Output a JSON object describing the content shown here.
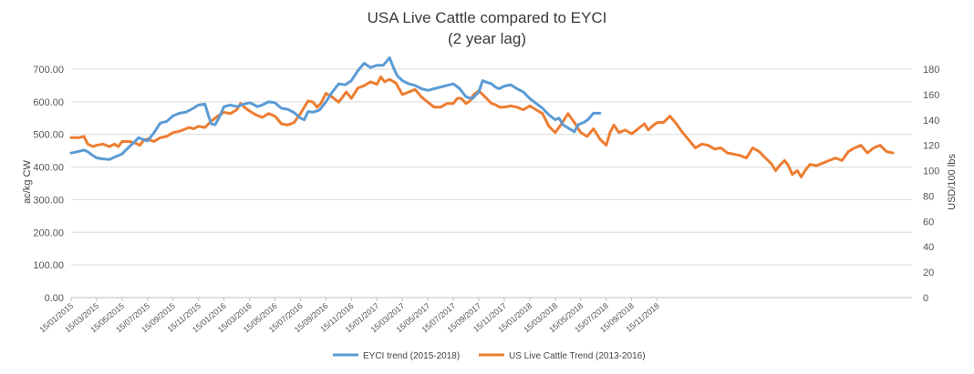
{
  "chart_data": {
    "type": "line",
    "title": "USA Live Cattle compared to EYCI",
    "subtitle": "(2 year lag)",
    "ylabel_left": "ac/kg CW",
    "ylabel_right": "USD/100 lbs",
    "ylim_left": [
      0,
      700
    ],
    "ylim_right": [
      0,
      180
    ],
    "yticks_left": [
      "0.00",
      "100.00",
      "200.00",
      "300.00",
      "400.00",
      "500.00",
      "600.00",
      "700.00"
    ],
    "yticks_right": [
      "0",
      "20",
      "40",
      "60",
      "80",
      "100",
      "120",
      "140",
      "160",
      "180"
    ],
    "xticks": [
      "15/01/2015",
      "15/03/2015",
      "15/05/2015",
      "15/07/2015",
      "15/09/2015",
      "15/11/2015",
      "15/01/2016",
      "15/03/2016",
      "15/05/2016",
      "15/07/2016",
      "15/09/2016",
      "15/11/2016",
      "15/01/2017",
      "15/03/2017",
      "15/05/2017",
      "15/07/2017",
      "15/09/2017",
      "15/11/2017",
      "15/01/2018",
      "15/03/2018",
      "15/05/2018",
      "15/07/2018",
      "15/09/2018",
      "15/11/2018"
    ],
    "grid": true,
    "legend_position": "bottom",
    "series": [
      {
        "name": "EYCI trend (2015-2018)",
        "axis": "left",
        "color": "#5b9bd5",
        "values": [
          [
            0,
            443
          ],
          [
            0.5,
            447
          ],
          [
            1,
            452
          ],
          [
            1.3,
            447
          ],
          [
            1.6,
            438
          ],
          [
            2,
            428
          ],
          [
            2.5,
            425
          ],
          [
            3,
            423
          ],
          [
            3.5,
            432
          ],
          [
            4,
            440
          ],
          [
            4.5,
            460
          ],
          [
            5,
            478
          ],
          [
            5.3,
            490
          ],
          [
            5.6,
            485
          ],
          [
            6,
            480
          ],
          [
            6.5,
            505
          ],
          [
            7,
            535
          ],
          [
            7.5,
            540
          ],
          [
            8,
            557
          ],
          [
            8.5,
            565
          ],
          [
            9,
            568
          ],
          [
            9.5,
            578
          ],
          [
            10,
            590
          ],
          [
            10.5,
            593
          ],
          [
            10.8,
            555
          ],
          [
            11,
            532
          ],
          [
            11.3,
            530
          ],
          [
            11.6,
            550
          ],
          [
            12,
            585
          ],
          [
            12.5,
            590
          ],
          [
            13,
            585
          ],
          [
            13.5,
            592
          ],
          [
            14,
            597
          ],
          [
            14.3,
            592
          ],
          [
            14.6,
            585
          ],
          [
            15,
            590
          ],
          [
            15.5,
            600
          ],
          [
            16,
            597
          ],
          [
            16.5,
            580
          ],
          [
            17,
            577
          ],
          [
            17.5,
            567
          ],
          [
            18,
            550
          ],
          [
            18.3,
            545
          ],
          [
            18.6,
            570
          ],
          [
            19,
            568
          ],
          [
            19.5,
            575
          ],
          [
            20,
            600
          ],
          [
            20.5,
            630
          ],
          [
            21,
            655
          ],
          [
            21.5,
            652
          ],
          [
            22,
            665
          ],
          [
            22.5,
            695
          ],
          [
            23,
            718
          ],
          [
            23.5,
            705
          ],
          [
            24,
            712
          ],
          [
            24.5,
            712
          ],
          [
            25,
            735
          ],
          [
            25.3,
            705
          ],
          [
            25.6,
            680
          ],
          [
            26,
            665
          ],
          [
            26.5,
            655
          ],
          [
            27,
            650
          ],
          [
            27.5,
            640
          ],
          [
            28,
            635
          ],
          [
            28.5,
            640
          ],
          [
            29,
            645
          ],
          [
            29.5,
            650
          ],
          [
            30,
            655
          ],
          [
            30.5,
            640
          ],
          [
            31,
            615
          ],
          [
            31.5,
            610
          ],
          [
            32,
            630
          ],
          [
            32.3,
            665
          ],
          [
            32.6,
            660
          ],
          [
            33,
            655
          ],
          [
            33.3,
            645
          ],
          [
            33.6,
            640
          ],
          [
            34,
            648
          ],
          [
            34.5,
            652
          ],
          [
            35,
            640
          ],
          [
            35.5,
            630
          ],
          [
            36,
            610
          ],
          [
            36.5,
            595
          ],
          [
            37,
            580
          ],
          [
            37.5,
            560
          ],
          [
            38,
            545
          ],
          [
            38.3,
            550
          ],
          [
            38.6,
            530
          ],
          [
            39,
            520
          ],
          [
            39.5,
            508
          ],
          [
            39.8,
            530
          ],
          [
            40.3,
            538
          ],
          [
            40.6,
            547
          ],
          [
            41,
            565
          ],
          [
            41.5,
            565
          ]
        ]
      },
      {
        "name": "US Live Cattle Trend (2013-2016)",
        "axis": "right",
        "color": "#ed7d31",
        "values": [
          [
            0,
            126
          ],
          [
            0.6,
            126
          ],
          [
            1,
            127
          ],
          [
            1.3,
            121
          ],
          [
            1.7,
            119
          ],
          [
            2,
            120
          ],
          [
            2.5,
            121
          ],
          [
            3,
            119
          ],
          [
            3.4,
            121
          ],
          [
            3.7,
            119
          ],
          [
            4,
            123
          ],
          [
            4.5,
            123
          ],
          [
            5,
            122
          ],
          [
            5.4,
            120
          ],
          [
            5.7,
            124
          ],
          [
            6,
            125
          ],
          [
            6.5,
            123
          ],
          [
            7,
            126
          ],
          [
            7.5,
            127
          ],
          [
            8,
            130
          ],
          [
            8.5,
            131
          ],
          [
            9,
            133
          ],
          [
            9.3,
            134
          ],
          [
            9.6,
            133
          ],
          [
            10,
            135
          ],
          [
            10.5,
            134
          ],
          [
            11,
            139
          ],
          [
            11.5,
            143
          ],
          [
            12,
            146
          ],
          [
            12.5,
            145
          ],
          [
            13,
            148
          ],
          [
            13.3,
            153
          ],
          [
            13.6,
            150
          ],
          [
            14,
            147
          ],
          [
            14.5,
            144
          ],
          [
            15,
            142
          ],
          [
            15.5,
            145
          ],
          [
            16,
            143
          ],
          [
            16.5,
            137
          ],
          [
            17,
            136
          ],
          [
            17.5,
            138
          ],
          [
            18,
            145
          ],
          [
            18.3,
            150
          ],
          [
            18.6,
            155
          ],
          [
            19,
            154
          ],
          [
            19.3,
            150
          ],
          [
            19.6,
            153
          ],
          [
            20,
            161
          ],
          [
            20.5,
            158
          ],
          [
            21,
            154
          ],
          [
            21.3,
            158
          ],
          [
            21.6,
            162
          ],
          [
            22,
            157
          ],
          [
            22.5,
            165
          ],
          [
            23,
            167
          ],
          [
            23.5,
            170
          ],
          [
            24,
            168
          ],
          [
            24.3,
            174
          ],
          [
            24.6,
            170
          ],
          [
            25,
            172
          ],
          [
            25.5,
            169
          ],
          [
            26,
            160
          ],
          [
            26.5,
            162
          ],
          [
            27,
            164
          ],
          [
            27.5,
            158
          ],
          [
            28,
            154
          ],
          [
            28.5,
            150
          ],
          [
            29,
            150
          ],
          [
            29.5,
            153
          ],
          [
            30,
            153
          ],
          [
            30.3,
            157
          ],
          [
            30.6,
            157
          ],
          [
            31,
            153
          ],
          [
            31.3,
            155
          ],
          [
            31.6,
            160
          ],
          [
            32,
            163
          ],
          [
            32.5,
            158
          ],
          [
            33,
            153
          ],
          [
            33.3,
            152
          ],
          [
            33.6,
            150
          ],
          [
            34,
            150
          ],
          [
            34.5,
            151
          ],
          [
            35,
            150
          ],
          [
            35.5,
            148
          ],
          [
            36,
            151
          ],
          [
            36.5,
            148
          ],
          [
            37,
            145
          ],
          [
            37.5,
            135
          ],
          [
            38,
            130
          ],
          [
            38.5,
            137
          ],
          [
            39,
            145
          ],
          [
            39.5,
            138
          ],
          [
            40,
            130
          ],
          [
            40.5,
            127
          ],
          [
            41,
            133
          ],
          [
            41.5,
            125
          ],
          [
            42,
            120
          ],
          [
            42.3,
            130
          ],
          [
            42.6,
            136
          ],
          [
            43,
            130
          ],
          [
            43.5,
            132
          ],
          [
            44,
            129
          ],
          [
            44.5,
            133
          ],
          [
            45,
            137
          ],
          [
            45.3,
            132
          ],
          [
            45.6,
            135
          ],
          [
            46,
            138
          ],
          [
            46.5,
            138
          ],
          [
            47,
            143
          ],
          [
            47.5,
            137
          ],
          [
            48,
            130
          ],
          [
            48.5,
            124
          ],
          [
            49,
            118
          ],
          [
            49.5,
            121
          ],
          [
            50,
            120
          ],
          [
            50.5,
            117
          ],
          [
            51,
            118
          ],
          [
            51.5,
            114
          ],
          [
            52,
            113
          ],
          [
            52.5,
            112
          ],
          [
            53,
            110
          ],
          [
            53.5,
            118
          ],
          [
            54,
            115
          ],
          [
            54.5,
            110
          ],
          [
            55,
            105
          ],
          [
            55.3,
            100
          ],
          [
            55.6,
            104
          ],
          [
            56,
            108
          ],
          [
            56.3,
            104
          ],
          [
            56.6,
            97
          ],
          [
            57,
            100
          ],
          [
            57.3,
            95
          ],
          [
            57.6,
            100
          ],
          [
            58,
            105
          ],
          [
            58.5,
            104
          ],
          [
            59,
            106
          ],
          [
            59.5,
            108
          ],
          [
            60,
            110
          ],
          [
            60.5,
            108
          ],
          [
            61,
            115
          ],
          [
            61.5,
            118
          ],
          [
            62,
            120
          ],
          [
            62.5,
            114
          ],
          [
            63,
            118
          ],
          [
            63.5,
            120
          ],
          [
            64,
            115
          ],
          [
            64.5,
            114
          ]
        ]
      }
    ]
  }
}
